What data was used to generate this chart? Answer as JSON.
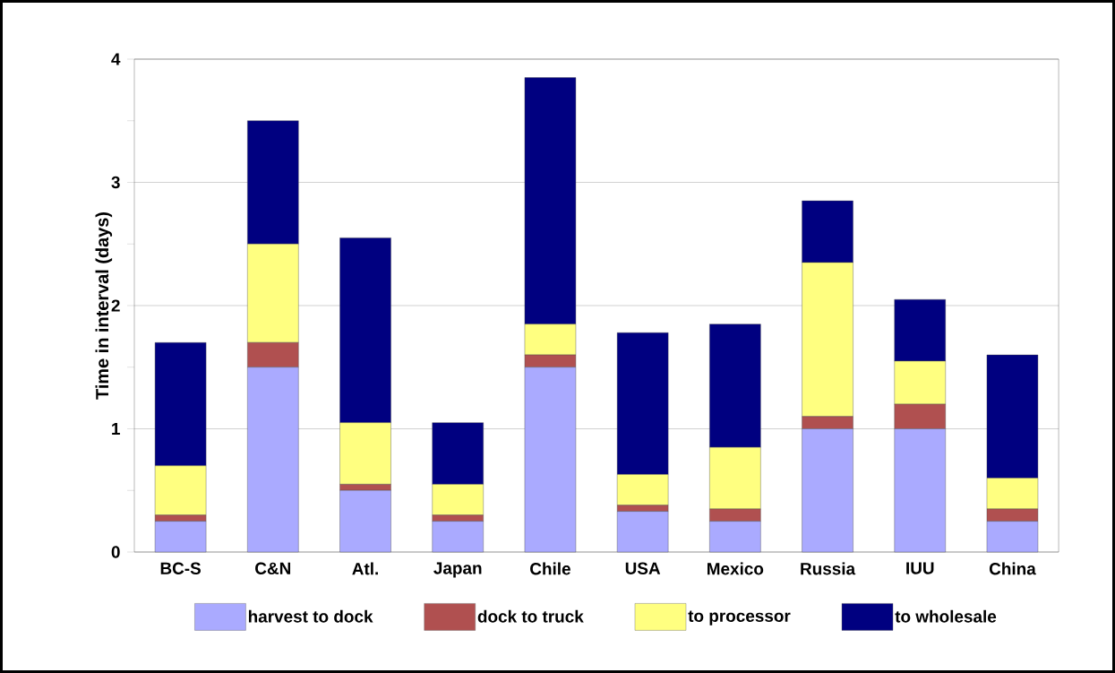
{
  "chart_data": {
    "type": "bar",
    "stacked": true,
    "ylabel": "Time in interval (days)",
    "categories": [
      "BC-S",
      "C&N",
      "Atl.",
      "Japan",
      "Chile",
      "USA",
      "Mexico",
      "Russia",
      "IUU",
      "China"
    ],
    "series": [
      {
        "name": "harvest to dock",
        "color": "#aaaaff",
        "values": [
          0.25,
          1.5,
          0.5,
          0.25,
          1.5,
          0.33,
          0.25,
          1.0,
          1.0,
          0.25
        ]
      },
      {
        "name": "dock to truck",
        "color": "#b05050",
        "values": [
          0.05,
          0.2,
          0.05,
          0.05,
          0.1,
          0.05,
          0.1,
          0.1,
          0.2,
          0.1
        ]
      },
      {
        "name": "to processor",
        "color": "#ffff80",
        "values": [
          0.4,
          0.8,
          0.5,
          0.25,
          0.25,
          0.25,
          0.5,
          1.25,
          0.35,
          0.25
        ]
      },
      {
        "name": "to wholesale",
        "color": "#000080",
        "values": [
          1.0,
          1.0,
          1.5,
          0.5,
          2.0,
          1.15,
          1.0,
          0.5,
          0.5,
          1.0
        ]
      }
    ],
    "ylim": [
      0,
      4
    ],
    "yticks": [
      0,
      {
        "value": 0.5,
        "label": null
      },
      1,
      {
        "value": 1.5,
        "label": null
      },
      2,
      {
        "value": 2.5,
        "label": null
      },
      3,
      {
        "value": 3.5,
        "label": null
      },
      4
    ],
    "grid": "y",
    "legend": "bottom"
  }
}
